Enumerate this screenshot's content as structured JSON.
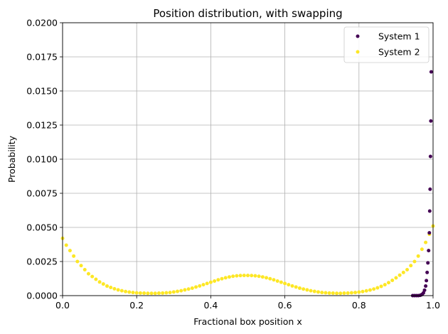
{
  "chart_data": {
    "type": "scatter",
    "title": "Position distribution, with swapping",
    "xlabel": "Fractional box position x",
    "ylabel": "Probability",
    "xlim": [
      0.0,
      1.0
    ],
    "ylim": [
      0.0,
      0.02
    ],
    "xticks": [
      0.0,
      0.2,
      0.4,
      0.6,
      0.8,
      1.0
    ],
    "xtick_labels": [
      "0.0",
      "0.2",
      "0.4",
      "0.6",
      "0.8",
      "1.0"
    ],
    "yticks": [
      0.0,
      0.0025,
      0.005,
      0.0075,
      0.01,
      0.0125,
      0.015,
      0.0175,
      0.02
    ],
    "ytick_labels": [
      "0.0000",
      "0.0025",
      "0.0050",
      "0.0075",
      "0.0100",
      "0.0125",
      "0.0150",
      "0.0175",
      "0.0200"
    ],
    "grid": true,
    "legend_position": "top-right",
    "series": [
      {
        "name": "System 1",
        "color": "#440154",
        "points": [
          [
            0.945,
            0.0
          ],
          [
            0.95,
            0.0
          ],
          [
            0.955,
            0.0
          ],
          [
            0.96,
            0.0
          ],
          [
            0.965,
            2e-05
          ],
          [
            0.968,
            5e-05
          ],
          [
            0.971,
            0.0001
          ],
          [
            0.974,
            0.0002
          ],
          [
            0.977,
            0.0004
          ],
          [
            0.98,
            0.0007
          ],
          [
            0.982,
            0.0011
          ],
          [
            0.984,
            0.0017
          ],
          [
            0.986,
            0.0024
          ],
          [
            0.988,
            0.0033
          ],
          [
            0.99,
            0.0046
          ],
          [
            0.991,
            0.0062
          ],
          [
            0.992,
            0.0078
          ],
          [
            0.993,
            0.0102
          ],
          [
            0.994,
            0.0128
          ],
          [
            0.995,
            0.0164
          ]
        ]
      },
      {
        "name": "System 2",
        "color": "#fde725",
        "points": [
          [
            0.0,
            0.0042
          ],
          [
            0.01,
            0.0037
          ],
          [
            0.02,
            0.0033
          ],
          [
            0.03,
            0.0029
          ],
          [
            0.04,
            0.0025
          ],
          [
            0.05,
            0.0022
          ],
          [
            0.06,
            0.0019
          ],
          [
            0.07,
            0.0016
          ],
          [
            0.08,
            0.0014
          ],
          [
            0.09,
            0.0012
          ],
          [
            0.1,
            0.001
          ],
          [
            0.11,
            0.00085
          ],
          [
            0.12,
            0.0007
          ],
          [
            0.13,
            0.0006
          ],
          [
            0.14,
            0.0005
          ],
          [
            0.15,
            0.00042
          ],
          [
            0.16,
            0.00036
          ],
          [
            0.17,
            0.0003
          ],
          [
            0.18,
            0.00026
          ],
          [
            0.19,
            0.00023
          ],
          [
            0.2,
            0.0002
          ],
          [
            0.21,
            0.00019
          ],
          [
            0.22,
            0.00018
          ],
          [
            0.23,
            0.00017
          ],
          [
            0.24,
            0.00017
          ],
          [
            0.25,
            0.00017
          ],
          [
            0.26,
            0.00018
          ],
          [
            0.27,
            0.00019
          ],
          [
            0.28,
            0.00021
          ],
          [
            0.29,
            0.00023
          ],
          [
            0.3,
            0.00027
          ],
          [
            0.31,
            0.00031
          ],
          [
            0.32,
            0.00036
          ],
          [
            0.33,
            0.00042
          ],
          [
            0.34,
            0.00048
          ],
          [
            0.35,
            0.00055
          ],
          [
            0.36,
            0.00063
          ],
          [
            0.37,
            0.00071
          ],
          [
            0.38,
            0.0008
          ],
          [
            0.39,
            0.00089
          ],
          [
            0.4,
            0.00098
          ],
          [
            0.41,
            0.00107
          ],
          [
            0.42,
            0.00116
          ],
          [
            0.43,
            0.00124
          ],
          [
            0.44,
            0.00131
          ],
          [
            0.45,
            0.00137
          ],
          [
            0.46,
            0.00142
          ],
          [
            0.47,
            0.00145
          ],
          [
            0.48,
            0.00147
          ],
          [
            0.49,
            0.00148
          ],
          [
            0.5,
            0.00148
          ],
          [
            0.51,
            0.00147
          ],
          [
            0.52,
            0.00145
          ],
          [
            0.53,
            0.00142
          ],
          [
            0.54,
            0.00137
          ],
          [
            0.55,
            0.00131
          ],
          [
            0.56,
            0.00124
          ],
          [
            0.57,
            0.00116
          ],
          [
            0.58,
            0.00107
          ],
          [
            0.59,
            0.00098
          ],
          [
            0.6,
            0.00089
          ],
          [
            0.61,
            0.0008
          ],
          [
            0.62,
            0.00071
          ],
          [
            0.63,
            0.00063
          ],
          [
            0.64,
            0.00055
          ],
          [
            0.65,
            0.00048
          ],
          [
            0.66,
            0.00042
          ],
          [
            0.67,
            0.00036
          ],
          [
            0.68,
            0.00031
          ],
          [
            0.69,
            0.00027
          ],
          [
            0.7,
            0.00023
          ],
          [
            0.71,
            0.00021
          ],
          [
            0.72,
            0.00019
          ],
          [
            0.73,
            0.00018
          ],
          [
            0.74,
            0.00017
          ],
          [
            0.75,
            0.00017
          ],
          [
            0.76,
            0.00018
          ],
          [
            0.77,
            0.00019
          ],
          [
            0.78,
            0.00021
          ],
          [
            0.79,
            0.00023
          ],
          [
            0.8,
            0.00026
          ],
          [
            0.81,
            0.0003
          ],
          [
            0.82,
            0.00035
          ],
          [
            0.83,
            0.00041
          ],
          [
            0.84,
            0.00048
          ],
          [
            0.85,
            0.00057
          ],
          [
            0.86,
            0.00068
          ],
          [
            0.87,
            0.0008
          ],
          [
            0.88,
            0.00095
          ],
          [
            0.89,
            0.00112
          ],
          [
            0.9,
            0.0013
          ],
          [
            0.91,
            0.0015
          ],
          [
            0.92,
            0.0017
          ],
          [
            0.93,
            0.0019
          ],
          [
            0.94,
            0.0022
          ],
          [
            0.95,
            0.0025
          ],
          [
            0.96,
            0.0029
          ],
          [
            0.97,
            0.0034
          ],
          [
            0.98,
            0.0039
          ],
          [
            0.99,
            0.0045
          ],
          [
            1.0,
            0.0051
          ]
        ]
      }
    ]
  }
}
